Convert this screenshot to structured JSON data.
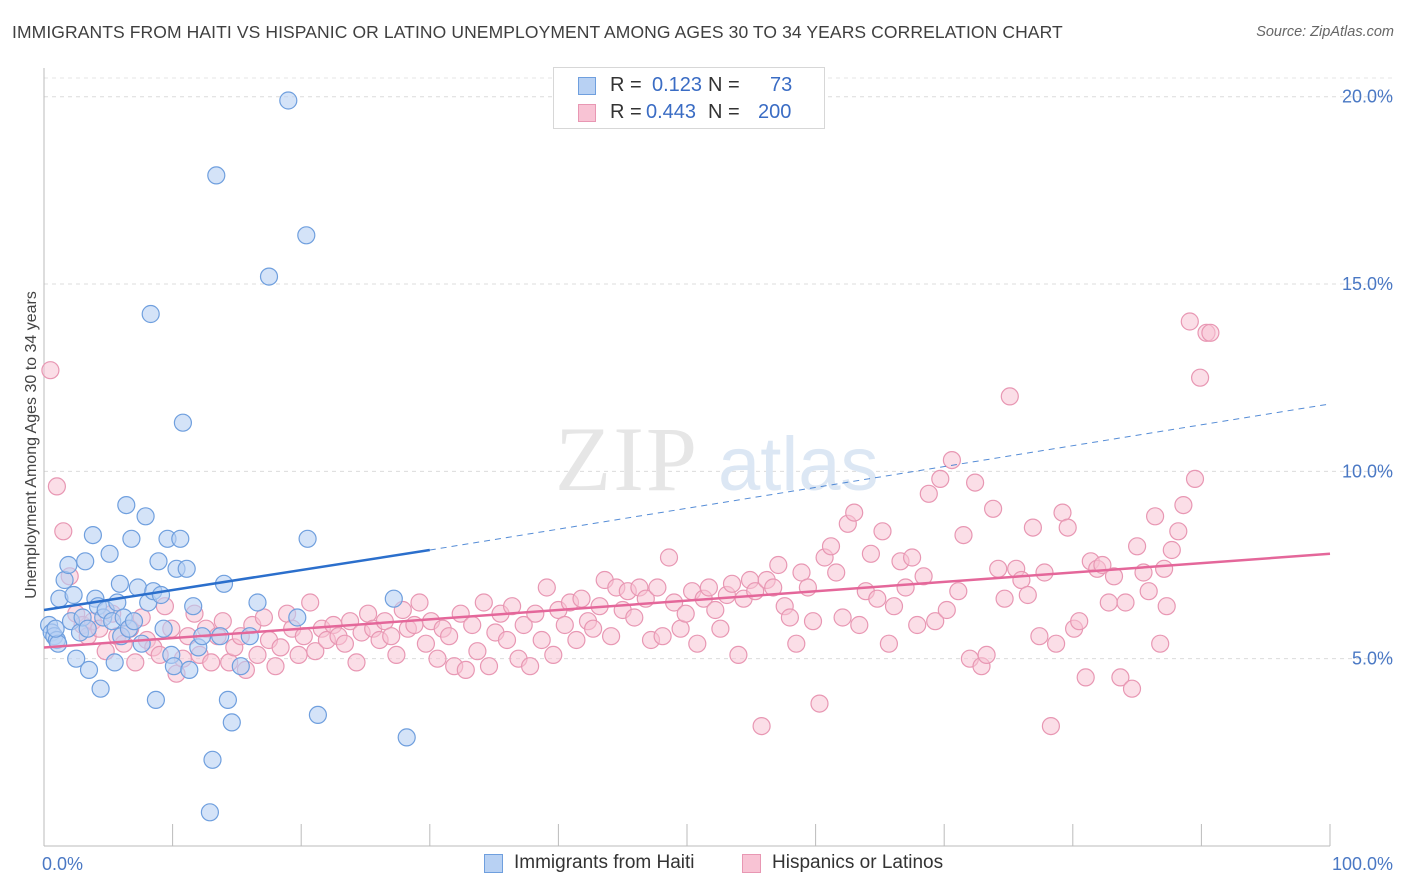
{
  "header": {
    "title": "IMMIGRANTS FROM HAITI VS HISPANIC OR LATINO UNEMPLOYMENT AMONG AGES 30 TO 34 YEARS CORRELATION CHART",
    "source": "Source: ZipAtlas.com"
  },
  "watermark": {
    "zip": "ZIP",
    "atlas": "atlas"
  },
  "legend_top": {
    "r_label": "R =",
    "n_label": "N =",
    "series1": {
      "r": "0.123",
      "n": "73"
    },
    "series2": {
      "r": "0.443",
      "n": "200"
    }
  },
  "legend_bottom": {
    "series1": "Immigrants from Haiti",
    "series2": "Hispanics or Latinos"
  },
  "chart_data": {
    "type": "scatter",
    "title": "IMMIGRANTS FROM HAITI VS HISPANIC OR LATINO UNEMPLOYMENT AMONG AGES 30 TO 34 YEARS CORRELATION CHART",
    "xlabel": "",
    "ylabel": "Unemployment Among Ages 30 to 34 years",
    "xlim": [
      0,
      100
    ],
    "ylim": [
      0,
      20.5
    ],
    "x_tick_labels": [
      "0.0%",
      "100.0%"
    ],
    "y_ticks": [
      5,
      10,
      15,
      20
    ],
    "y_tick_labels": [
      "5.0%",
      "10.0%",
      "15.0%",
      "20.0%"
    ],
    "grid": true,
    "legend_placement": "bottom",
    "colors": {
      "series1_fill": "#b8d1f3",
      "series1_stroke": "#6f9fde",
      "series1_line": "#2b6fcc",
      "series2_fill": "#f8c3d4",
      "series2_stroke": "#e897b3",
      "series2_line": "#e4679a"
    },
    "series": [
      {
        "name": "Immigrants from Haiti",
        "r": 0.123,
        "n": 73,
        "trend": {
          "x0": 0,
          "y0": 6.3,
          "x1": 30,
          "y1": 7.9,
          "dash_to_x": 100,
          "dash_to_y": 11.8
        },
        "points": [
          [
            0.4,
            5.9
          ],
          [
            0.6,
            5.7
          ],
          [
            0.8,
            5.6
          ],
          [
            1.0,
            5.5
          ],
          [
            1.1,
            5.4
          ],
          [
            0.9,
            5.8
          ],
          [
            1.2,
            6.6
          ],
          [
            1.6,
            7.1
          ],
          [
            1.9,
            7.5
          ],
          [
            2.1,
            6.0
          ],
          [
            2.3,
            6.7
          ],
          [
            2.5,
            5.0
          ],
          [
            2.8,
            5.7
          ],
          [
            3.0,
            6.1
          ],
          [
            3.2,
            7.6
          ],
          [
            3.4,
            5.8
          ],
          [
            3.5,
            4.7
          ],
          [
            3.8,
            8.3
          ],
          [
            4.0,
            6.6
          ],
          [
            4.2,
            6.4
          ],
          [
            4.4,
            4.2
          ],
          [
            4.6,
            6.1
          ],
          [
            4.8,
            6.3
          ],
          [
            5.1,
            7.8
          ],
          [
            5.3,
            6.0
          ],
          [
            5.5,
            4.9
          ],
          [
            5.7,
            6.5
          ],
          [
            5.9,
            7.0
          ],
          [
            6.0,
            5.6
          ],
          [
            6.2,
            6.1
          ],
          [
            6.4,
            9.1
          ],
          [
            6.6,
            5.8
          ],
          [
            6.8,
            8.2
          ],
          [
            7.0,
            6.0
          ],
          [
            7.3,
            6.9
          ],
          [
            7.6,
            5.4
          ],
          [
            7.9,
            8.8
          ],
          [
            8.1,
            6.5
          ],
          [
            8.3,
            14.2
          ],
          [
            8.5,
            6.8
          ],
          [
            8.7,
            3.9
          ],
          [
            8.9,
            7.6
          ],
          [
            9.1,
            6.7
          ],
          [
            9.3,
            5.8
          ],
          [
            9.6,
            8.2
          ],
          [
            9.9,
            5.1
          ],
          [
            10.1,
            4.8
          ],
          [
            10.3,
            7.4
          ],
          [
            10.6,
            8.2
          ],
          [
            10.8,
            11.3
          ],
          [
            11.1,
            7.4
          ],
          [
            11.3,
            4.7
          ],
          [
            11.6,
            6.4
          ],
          [
            12.0,
            5.3
          ],
          [
            12.3,
            5.6
          ],
          [
            12.9,
            0.9
          ],
          [
            13.1,
            2.3
          ],
          [
            13.4,
            17.9
          ],
          [
            13.7,
            5.6
          ],
          [
            14.0,
            7.0
          ],
          [
            14.3,
            3.9
          ],
          [
            14.6,
            3.3
          ],
          [
            15.3,
            4.8
          ],
          [
            16.0,
            5.6
          ],
          [
            16.6,
            6.5
          ],
          [
            17.5,
            15.2
          ],
          [
            19.0,
            19.9
          ],
          [
            19.7,
            6.1
          ],
          [
            20.4,
            16.3
          ],
          [
            20.5,
            8.2
          ],
          [
            21.3,
            3.5
          ],
          [
            27.2,
            6.6
          ],
          [
            28.2,
            2.9
          ]
        ]
      },
      {
        "name": "Hispanics or Latinos",
        "r": 0.443,
        "n": 200,
        "trend": {
          "x0": 0,
          "y0": 5.3,
          "x1": 100,
          "y1": 7.8
        },
        "points": [
          [
            0.5,
            12.7
          ],
          [
            1.0,
            9.6
          ],
          [
            1.5,
            8.4
          ],
          [
            2.0,
            7.2
          ],
          [
            2.5,
            6.2
          ],
          [
            3.0,
            5.9
          ],
          [
            3.4,
            5.6
          ],
          [
            3.8,
            6.0
          ],
          [
            4.3,
            5.8
          ],
          [
            4.8,
            5.2
          ],
          [
            5.3,
            6.2
          ],
          [
            5.7,
            5.6
          ],
          [
            6.2,
            5.4
          ],
          [
            6.7,
            5.8
          ],
          [
            7.1,
            4.9
          ],
          [
            7.6,
            6.1
          ],
          [
            8.0,
            5.5
          ],
          [
            8.5,
            5.3
          ],
          [
            9.0,
            5.1
          ],
          [
            9.4,
            6.4
          ],
          [
            9.9,
            5.8
          ],
          [
            10.3,
            4.6
          ],
          [
            10.8,
            5.0
          ],
          [
            11.2,
            5.6
          ],
          [
            11.7,
            6.2
          ],
          [
            12.1,
            5.1
          ],
          [
            12.6,
            5.8
          ],
          [
            13.0,
            4.9
          ],
          [
            13.5,
            5.6
          ],
          [
            13.9,
            6.0
          ],
          [
            14.4,
            4.9
          ],
          [
            14.8,
            5.3
          ],
          [
            15.3,
            5.6
          ],
          [
            15.7,
            4.7
          ],
          [
            16.2,
            5.9
          ],
          [
            16.6,
            5.1
          ],
          [
            17.1,
            6.1
          ],
          [
            17.5,
            5.5
          ],
          [
            18.0,
            4.8
          ],
          [
            18.4,
            5.3
          ],
          [
            18.9,
            6.2
          ],
          [
            19.3,
            5.8
          ],
          [
            19.8,
            5.1
          ],
          [
            20.2,
            5.6
          ],
          [
            20.7,
            6.5
          ],
          [
            21.1,
            5.2
          ],
          [
            21.6,
            5.8
          ],
          [
            22.0,
            5.5
          ],
          [
            22.5,
            5.9
          ],
          [
            22.9,
            5.6
          ],
          [
            23.4,
            5.4
          ],
          [
            23.8,
            6.0
          ],
          [
            24.3,
            4.9
          ],
          [
            24.7,
            5.7
          ],
          [
            25.2,
            6.2
          ],
          [
            25.6,
            5.8
          ],
          [
            26.1,
            5.5
          ],
          [
            26.5,
            6.0
          ],
          [
            27.0,
            5.6
          ],
          [
            27.4,
            5.1
          ],
          [
            27.9,
            6.3
          ],
          [
            28.3,
            5.8
          ],
          [
            28.8,
            5.9
          ],
          [
            29.2,
            6.5
          ],
          [
            29.7,
            5.4
          ],
          [
            30.1,
            6.0
          ],
          [
            30.6,
            5.0
          ],
          [
            31.0,
            5.8
          ],
          [
            31.5,
            5.6
          ],
          [
            31.9,
            4.8
          ],
          [
            32.4,
            6.2
          ],
          [
            32.8,
            4.7
          ],
          [
            33.3,
            5.9
          ],
          [
            33.7,
            5.2
          ],
          [
            34.2,
            6.5
          ],
          [
            34.6,
            4.8
          ],
          [
            35.1,
            5.7
          ],
          [
            35.5,
            6.2
          ],
          [
            36.0,
            5.5
          ],
          [
            36.4,
            6.4
          ],
          [
            36.9,
            5.0
          ],
          [
            37.3,
            5.9
          ],
          [
            37.8,
            4.8
          ],
          [
            38.2,
            6.2
          ],
          [
            38.7,
            5.5
          ],
          [
            39.1,
            6.9
          ],
          [
            39.6,
            5.1
          ],
          [
            40.0,
            6.3
          ],
          [
            40.5,
            5.9
          ],
          [
            40.9,
            6.5
          ],
          [
            41.4,
            5.5
          ],
          [
            41.8,
            6.6
          ],
          [
            42.3,
            6.0
          ],
          [
            42.7,
            5.8
          ],
          [
            43.2,
            6.4
          ],
          [
            43.6,
            7.1
          ],
          [
            44.1,
            5.6
          ],
          [
            44.5,
            6.9
          ],
          [
            45.0,
            6.3
          ],
          [
            45.4,
            6.8
          ],
          [
            45.9,
            6.1
          ],
          [
            46.3,
            6.9
          ],
          [
            46.8,
            6.6
          ],
          [
            47.2,
            5.5
          ],
          [
            47.7,
            6.9
          ],
          [
            48.1,
            5.6
          ],
          [
            48.6,
            7.7
          ],
          [
            49.0,
            6.5
          ],
          [
            49.5,
            5.8
          ],
          [
            49.9,
            6.2
          ],
          [
            50.4,
            6.8
          ],
          [
            50.8,
            5.4
          ],
          [
            51.3,
            6.6
          ],
          [
            51.7,
            6.9
          ],
          [
            52.2,
            6.3
          ],
          [
            52.6,
            5.8
          ],
          [
            53.1,
            6.7
          ],
          [
            53.5,
            7.0
          ],
          [
            54.0,
            5.1
          ],
          [
            54.4,
            6.6
          ],
          [
            54.9,
            7.1
          ],
          [
            55.3,
            6.8
          ],
          [
            55.8,
            3.2
          ],
          [
            56.2,
            7.1
          ],
          [
            56.7,
            6.9
          ],
          [
            57.1,
            7.5
          ],
          [
            57.6,
            6.4
          ],
          [
            58.0,
            6.1
          ],
          [
            58.5,
            5.4
          ],
          [
            58.9,
            7.3
          ],
          [
            59.4,
            6.9
          ],
          [
            59.8,
            6.0
          ],
          [
            60.3,
            3.8
          ],
          [
            60.7,
            7.7
          ],
          [
            61.2,
            8.0
          ],
          [
            61.6,
            7.3
          ],
          [
            62.1,
            6.1
          ],
          [
            62.5,
            8.6
          ],
          [
            63.0,
            8.9
          ],
          [
            63.4,
            5.9
          ],
          [
            63.9,
            6.8
          ],
          [
            64.3,
            7.8
          ],
          [
            64.8,
            6.6
          ],
          [
            65.2,
            8.4
          ],
          [
            65.7,
            5.4
          ],
          [
            66.1,
            6.4
          ],
          [
            66.6,
            7.6
          ],
          [
            67.0,
            6.9
          ],
          [
            67.5,
            7.7
          ],
          [
            67.9,
            5.9
          ],
          [
            68.4,
            7.2
          ],
          [
            68.8,
            9.4
          ],
          [
            69.3,
            6.0
          ],
          [
            69.7,
            9.8
          ],
          [
            70.2,
            6.3
          ],
          [
            70.6,
            10.3
          ],
          [
            71.1,
            6.8
          ],
          [
            71.5,
            8.3
          ],
          [
            72.0,
            5.0
          ],
          [
            72.4,
            9.7
          ],
          [
            72.9,
            4.8
          ],
          [
            73.3,
            5.1
          ],
          [
            73.8,
            9.0
          ],
          [
            74.2,
            7.4
          ],
          [
            74.7,
            6.6
          ],
          [
            75.1,
            12.0
          ],
          [
            75.6,
            7.4
          ],
          [
            76.0,
            7.1
          ],
          [
            76.5,
            6.7
          ],
          [
            76.9,
            8.5
          ],
          [
            77.4,
            5.6
          ],
          [
            77.8,
            7.3
          ],
          [
            78.3,
            3.2
          ],
          [
            78.7,
            5.4
          ],
          [
            79.2,
            8.9
          ],
          [
            79.6,
            8.5
          ],
          [
            80.1,
            5.8
          ],
          [
            80.5,
            6.0
          ],
          [
            81.0,
            4.5
          ],
          [
            81.4,
            7.6
          ],
          [
            81.9,
            7.4
          ],
          [
            82.3,
            7.5
          ],
          [
            82.8,
            6.5
          ],
          [
            83.2,
            7.2
          ],
          [
            83.7,
            4.5
          ],
          [
            84.1,
            6.5
          ],
          [
            84.6,
            4.2
          ],
          [
            85.0,
            8.0
          ],
          [
            85.5,
            7.3
          ],
          [
            85.9,
            6.8
          ],
          [
            86.4,
            8.8
          ],
          [
            86.8,
            5.4
          ],
          [
            87.3,
            6.4
          ],
          [
            87.7,
            7.9
          ],
          [
            88.2,
            8.4
          ],
          [
            88.6,
            9.1
          ],
          [
            89.1,
            14.0
          ],
          [
            89.5,
            9.8
          ],
          [
            89.9,
            12.5
          ],
          [
            90.4,
            13.7
          ],
          [
            90.7,
            13.7
          ],
          [
            87.1,
            7.4
          ]
        ]
      }
    ]
  }
}
